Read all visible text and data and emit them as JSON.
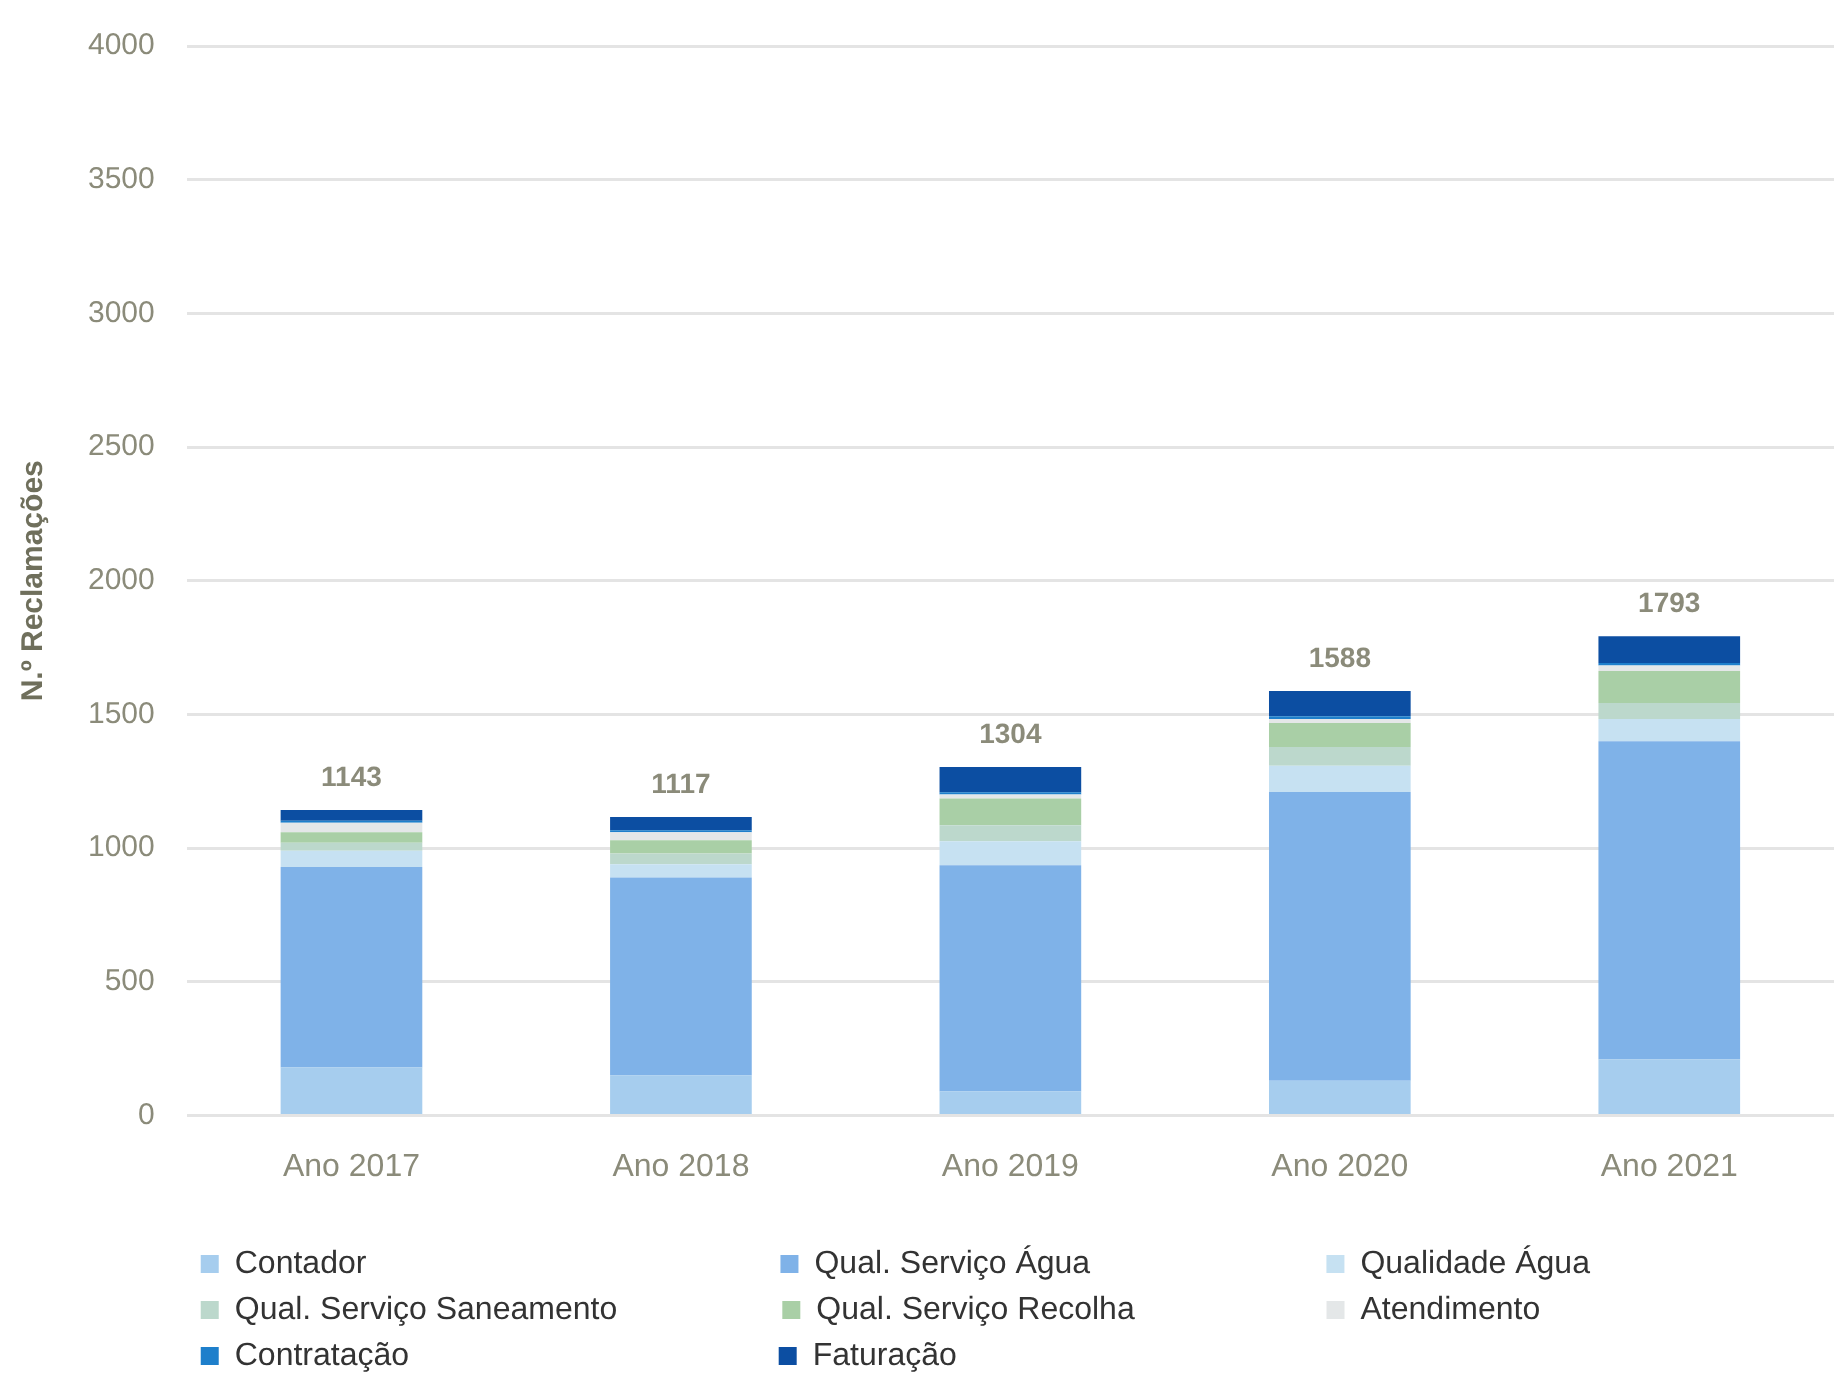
{
  "chart_data": {
    "type": "bar",
    "stacked": true,
    "ylabel": "N.º Reclamações",
    "categories": [
      "Ano 2017",
      "Ano 2018",
      "Ano 2019",
      "Ano 2020",
      "Ano 2021"
    ],
    "series": [
      {
        "name": "Contador",
        "color": "#a6cdee",
        "values": [
          180,
          150,
          90,
          130,
          210
        ]
      },
      {
        "name": "Qual. Serviço Água",
        "color": "#7fb2e8",
        "values": [
          750,
          740,
          846,
          1080,
          1190
        ]
      },
      {
        "name": "Qualidade Água",
        "color": "#c6e1f2",
        "values": [
          60,
          50,
          90,
          98,
          83
        ]
      },
      {
        "name": "Qual. Serviço Saneamento",
        "color": "#bcd8cc",
        "values": [
          30,
          40,
          60,
          70,
          60
        ]
      },
      {
        "name": "Qual. Serviço Recolha",
        "color": "#a9cfa6",
        "values": [
          40,
          50,
          100,
          90,
          120
        ]
      },
      {
        "name": "Atendimento",
        "color": "#e4e7e8",
        "values": [
          35,
          30,
          15,
          15,
          20
        ]
      },
      {
        "name": "Contratação",
        "color": "#1e7fcb",
        "values": [
          8,
          7,
          8,
          10,
          10
        ]
      },
      {
        "name": "Faturação",
        "color": "#0c4ea2",
        "values": [
          40,
          50,
          95,
          95,
          100
        ]
      }
    ],
    "ylim": [
      0,
      4000
    ],
    "yticks": [
      0,
      500,
      1000,
      1500,
      2000,
      2500,
      3000,
      3500,
      4000
    ],
    "grid": "y",
    "legend": "bottom",
    "totals": [
      "1143",
      "1117",
      "1304",
      "1588",
      "1793"
    ]
  }
}
